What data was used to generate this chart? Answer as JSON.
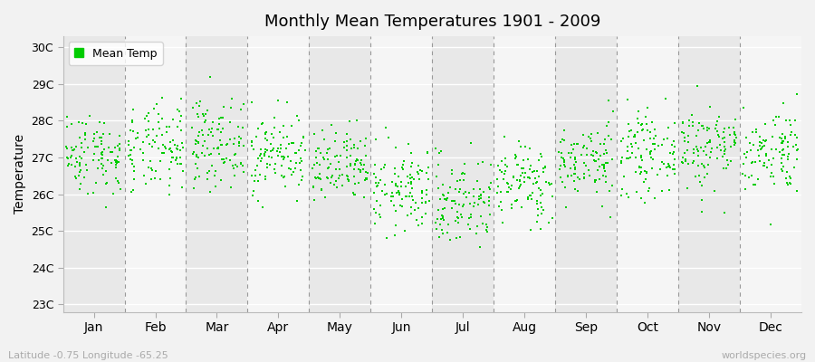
{
  "title": "Monthly Mean Temperatures 1901 - 2009",
  "ylabel": "Temperature",
  "xlabel_labels": [
    "Jan",
    "Feb",
    "Mar",
    "Apr",
    "May",
    "Jun",
    "Jul",
    "Aug",
    "Sep",
    "Oct",
    "Nov",
    "Dec"
  ],
  "ytick_labels": [
    "23C",
    "24C",
    "25C",
    "26C",
    "27C",
    "28C",
    "29C",
    "30C"
  ],
  "ytick_values": [
    23,
    24,
    25,
    26,
    27,
    28,
    29,
    30
  ],
  "ylim": [
    22.8,
    30.3
  ],
  "dot_color": "#00cc00",
  "background_color": "#f2f2f2",
  "band_colors": [
    "#e8e8e8",
    "#f5f5f5"
  ],
  "legend_label": "Mean Temp",
  "footer_left": "Latitude -0.75 Longitude -65.25",
  "footer_right": "worldspecies.org",
  "years": 109,
  "monthly_means": [
    27.1,
    27.2,
    27.4,
    27.1,
    26.7,
    26.1,
    25.8,
    26.3,
    26.9,
    27.1,
    27.3,
    27.2
  ],
  "monthly_stds": [
    0.55,
    0.6,
    0.58,
    0.55,
    0.52,
    0.58,
    0.62,
    0.55,
    0.52,
    0.55,
    0.6,
    0.58
  ],
  "seed": 42
}
